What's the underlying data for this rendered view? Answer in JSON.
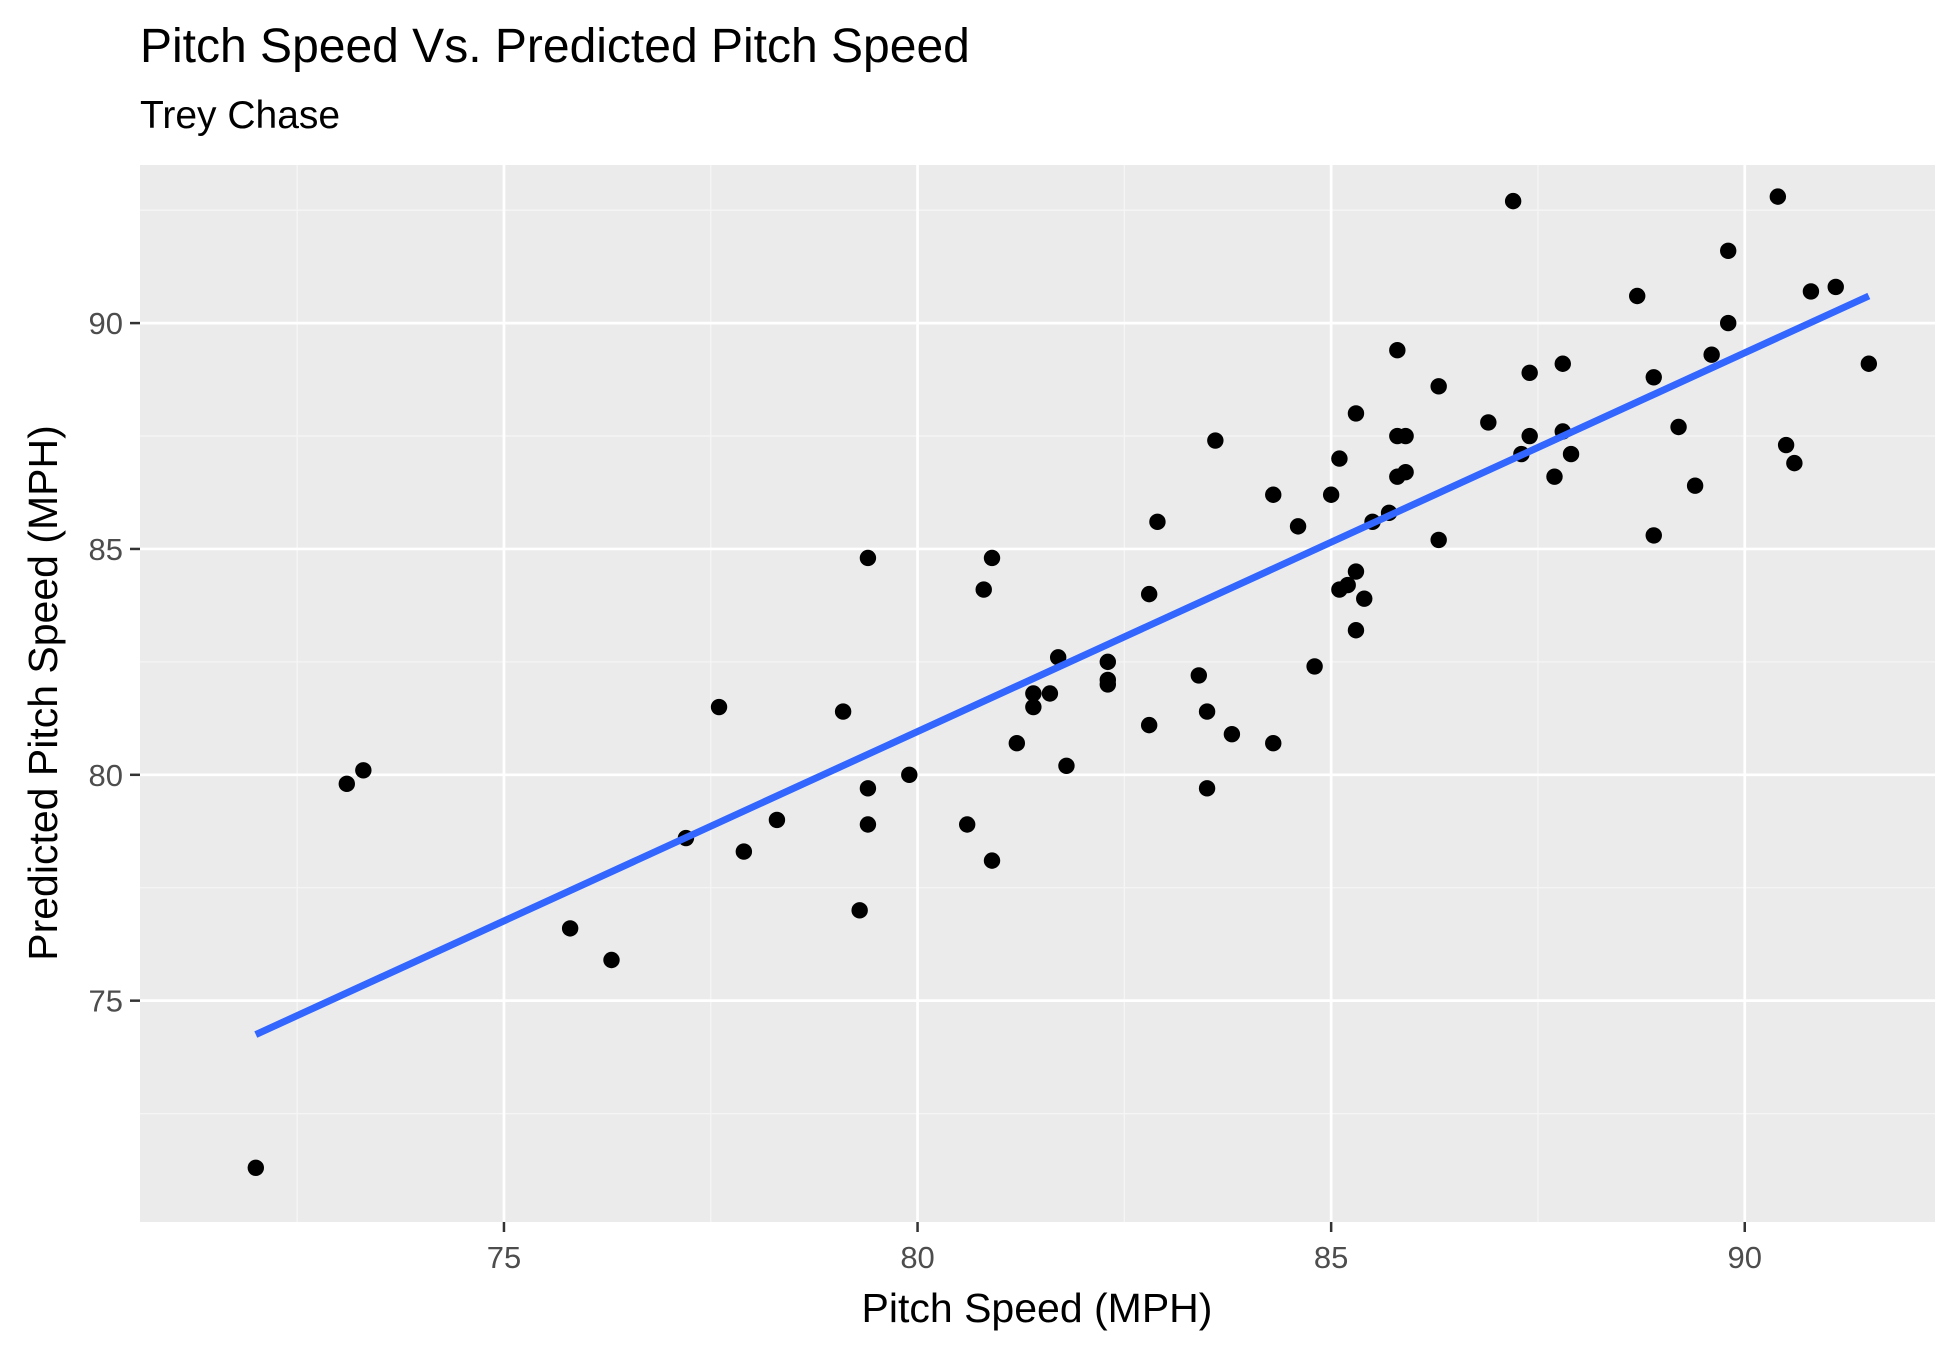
{
  "chart_data": {
    "type": "scatter",
    "title": "Pitch Speed Vs. Predicted Pitch Speed",
    "subtitle": "Trey Chase",
    "xlabel": "Pitch Speed (MPH)",
    "ylabel": "Predicted Pitch Speed (MPH)",
    "xlim": [
      70.6,
      92.3
    ],
    "ylim": [
      70.1,
      93.5
    ],
    "x_ticks": [
      75,
      80,
      85,
      90
    ],
    "y_ticks": [
      75,
      80,
      85,
      90
    ],
    "x_tick_labels": [
      "75",
      "80",
      "85",
      "90"
    ],
    "y_tick_labels": [
      "75",
      "80",
      "85",
      "90"
    ],
    "grid": true,
    "legend": "none",
    "colors": {
      "panel_background": "#EBEBEB",
      "grid_major": "#FFFFFF",
      "grid_minor": "#F5F5F5",
      "points": "#000000",
      "fit_line": "#3366FF",
      "tick_label": "#4D4D4D",
      "text": "#000000"
    },
    "series": [
      {
        "type": "scatter",
        "points": [
          [
            72.0,
            71.3
          ],
          [
            73.1,
            79.8
          ],
          [
            73.3,
            80.1
          ],
          [
            75.8,
            76.6
          ],
          [
            76.3,
            75.9
          ],
          [
            77.2,
            78.6
          ],
          [
            77.6,
            81.5
          ],
          [
            77.9,
            78.3
          ],
          [
            78.3,
            79.0
          ],
          [
            79.1,
            81.4
          ],
          [
            79.3,
            77.0
          ],
          [
            79.4,
            84.8
          ],
          [
            79.4,
            79.7
          ],
          [
            79.4,
            78.9
          ],
          [
            79.9,
            80.0
          ],
          [
            80.6,
            78.9
          ],
          [
            80.8,
            84.1
          ],
          [
            80.9,
            84.8
          ],
          [
            80.9,
            78.1
          ],
          [
            81.2,
            80.7
          ],
          [
            81.4,
            81.8
          ],
          [
            81.4,
            81.5
          ],
          [
            81.6,
            81.8
          ],
          [
            81.7,
            82.6
          ],
          [
            81.8,
            80.2
          ],
          [
            82.3,
            82.5
          ],
          [
            82.3,
            82.1
          ],
          [
            82.3,
            82.0
          ],
          [
            82.8,
            84.0
          ],
          [
            82.8,
            81.1
          ],
          [
            82.9,
            85.6
          ],
          [
            83.4,
            82.2
          ],
          [
            83.5,
            81.4
          ],
          [
            83.5,
            79.7
          ],
          [
            83.6,
            87.4
          ],
          [
            83.8,
            80.9
          ],
          [
            84.3,
            86.2
          ],
          [
            84.3,
            80.7
          ],
          [
            84.6,
            85.5
          ],
          [
            84.8,
            82.4
          ],
          [
            85.0,
            86.2
          ],
          [
            85.1,
            87.0
          ],
          [
            85.1,
            84.1
          ],
          [
            85.2,
            84.2
          ],
          [
            85.3,
            88.0
          ],
          [
            85.3,
            84.5
          ],
          [
            85.3,
            83.2
          ],
          [
            85.4,
            83.9
          ],
          [
            85.5,
            85.6
          ],
          [
            85.7,
            85.8
          ],
          [
            85.8,
            89.4
          ],
          [
            85.8,
            87.5
          ],
          [
            85.8,
            86.6
          ],
          [
            85.9,
            87.5
          ],
          [
            85.9,
            86.7
          ],
          [
            86.3,
            88.6
          ],
          [
            86.3,
            85.2
          ],
          [
            86.9,
            87.8
          ],
          [
            87.2,
            92.7
          ],
          [
            87.3,
            87.1
          ],
          [
            87.4,
            88.9
          ],
          [
            87.4,
            87.5
          ],
          [
            87.7,
            86.6
          ],
          [
            87.8,
            89.1
          ],
          [
            87.8,
            87.6
          ],
          [
            87.9,
            87.1
          ],
          [
            88.7,
            90.6
          ],
          [
            88.9,
            88.8
          ],
          [
            88.9,
            85.3
          ],
          [
            89.2,
            87.7
          ],
          [
            89.4,
            86.4
          ],
          [
            89.6,
            89.3
          ],
          [
            89.8,
            91.6
          ],
          [
            89.8,
            90.0
          ],
          [
            90.4,
            92.8
          ],
          [
            90.5,
            87.3
          ],
          [
            90.6,
            86.9
          ],
          [
            90.8,
            90.7
          ],
          [
            91.1,
            90.8
          ],
          [
            91.5,
            89.1
          ]
        ]
      },
      {
        "type": "line",
        "name": "",
        "x": [
          72.0,
          91.5
        ],
        "y": [
          74.25,
          90.6
        ]
      }
    ]
  }
}
